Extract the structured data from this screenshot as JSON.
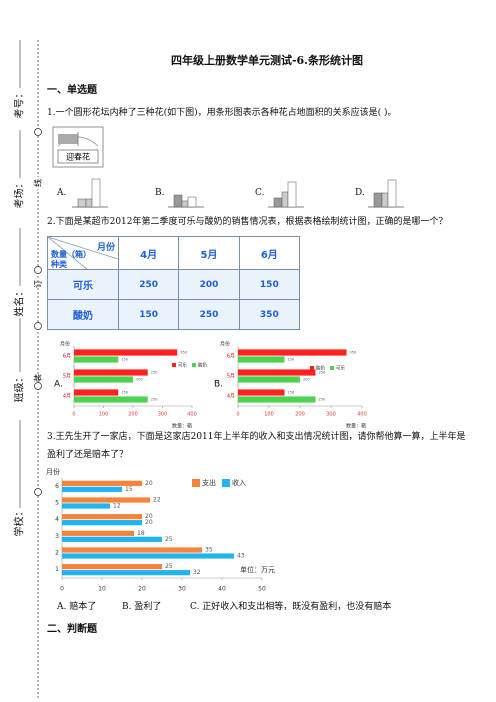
{
  "margin": {
    "labels": [
      "考号：",
      "考场：",
      "姓名：",
      "班级：",
      "学校："
    ],
    "binding_marks": [
      "线",
      "订",
      "装"
    ]
  },
  "title": "四年级上册数学单元测试-6.条形统计图",
  "sections": [
    {
      "heading": "一、单选题",
      "questions": [
        {
          "text": "1.一个圆形花坛内种了三种花(如下图)，用条形图表示各种花占地面积的关系应该是(    )。",
          "figure_label": "迎春花",
          "options": [
            "A.",
            "B.",
            "C.",
            "D."
          ]
        },
        {
          "text": "2.下面是某超市2012年第二季度可乐与酸奶的销售情况表，根据表格绘制统计图，正确的是哪一个？",
          "table": {
            "corner": [
              "月份",
              "数量（箱）",
              "种类"
            ],
            "columns": [
              "4月",
              "5月",
              "6月"
            ],
            "rows": [
              {
                "name": "可乐",
                "values": [
                  250,
                  200,
                  150
                ]
              },
              {
                "name": "酸奶",
                "values": [
                  150,
                  250,
                  350
                ]
              }
            ]
          },
          "charts": [
            {
              "type": "bar",
              "label": "A.",
              "y_title": "月份",
              "x_title": "数量：箱",
              "categories": [
                "4月",
                "5月",
                "6月"
              ],
              "series": [
                {
                  "name": "可乐",
                  "color": "#ff2020",
                  "values": [
                    150,
                    250,
                    350
                  ]
                },
                {
                  "name": "酸奶",
                  "color": "#4fd24f",
                  "values": [
                    250,
                    200,
                    150
                  ]
                }
              ],
              "xlim": [
                0,
                400
              ],
              "xticks": [
                0,
                100,
                200,
                300,
                400
              ]
            },
            {
              "type": "bar",
              "label": "B.",
              "y_title": "月份",
              "x_title": "数量：箱",
              "categories": [
                "4月",
                "5月",
                "6月"
              ],
              "series": [
                {
                  "name": "酸奶",
                  "color": "#ff2020",
                  "values": [
                    150,
                    250,
                    350
                  ]
                },
                {
                  "name": "可乐",
                  "color": "#4fd24f",
                  "values": [
                    250,
                    200,
                    150
                  ]
                }
              ],
              "xlim": [
                0,
                400
              ],
              "xticks": [
                0,
                100,
                200,
                300,
                400
              ]
            }
          ]
        },
        {
          "text": "3.王先生开了一家店，下面是这家店2011年上半年的收入和支出情况统计图，请你帮他算一算，上半年是盈利了还是赔本了？",
          "chart": {
            "type": "bar",
            "y_title": "月份",
            "x_title": "单位：万元",
            "categories": [
              "1",
              "2",
              "3",
              "4",
              "5",
              "6"
            ],
            "series": [
              {
                "name": "支出",
                "color": "#f5843a",
                "values": [
                  25,
                  35,
                  18,
                  20,
                  22,
                  20
                ]
              },
              {
                "name": "收入",
                "color": "#22b4f0",
                "values": [
                  32,
                  43,
                  25,
                  20,
                  12,
                  15
                ]
              }
            ],
            "xlim": [
              0,
              50
            ],
            "xticks": [
              0,
              10,
              20,
              30,
              40,
              50
            ]
          },
          "options": [
            "A. 赔本了",
            "B. 盈利了",
            "C. 正好收入和支出相等，既没有盈利，也没有赔本"
          ]
        }
      ]
    },
    {
      "heading": "二、判断题"
    }
  ]
}
